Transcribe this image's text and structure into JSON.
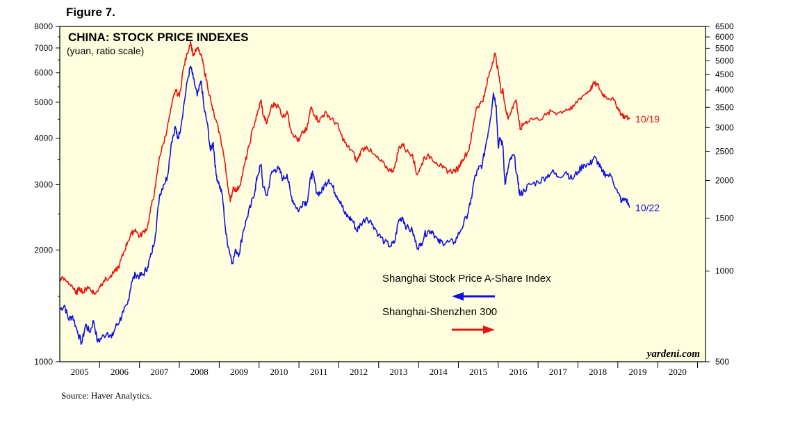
{
  "figure_label": "Figure 7.",
  "source": "Source: Haver Analytics.",
  "colors": {
    "background": "#FFFFE0",
    "red": "#E8140F",
    "blue": "#1010E0"
  },
  "chart_data": {
    "type": "line",
    "title": "CHINA: STOCK PRICE INDEXES",
    "subtitle": "(yuan, ratio scale)",
    "watermark": "yardeni.com",
    "x_range": [
      2004.5,
      2020.7
    ],
    "x_ticks": [
      "2005",
      "2006",
      "2007",
      "2008",
      "2009",
      "2010",
      "2011",
      "2012",
      "2013",
      "2014",
      "2015",
      "2016",
      "2017",
      "2018",
      "2019",
      "2020"
    ],
    "y_left": {
      "scale": "log",
      "range": [
        1000,
        8000
      ],
      "ticks": [
        1000,
        2000,
        3000,
        4000,
        5000,
        6000,
        7000,
        8000
      ]
    },
    "y_right": {
      "scale": "log",
      "range": [
        500,
        6500
      ],
      "ticks": [
        500,
        1000,
        1500,
        2000,
        2500,
        3000,
        3500,
        4000,
        4500,
        5000,
        5500,
        6000,
        6500
      ]
    },
    "series": [
      {
        "name": "Shanghai Stock Price A-Share Index",
        "axis": "left",
        "color": "#1010E0",
        "arrow": "left",
        "end_label": "10/22",
        "points": [
          [
            2004.5,
            1380
          ],
          [
            2004.62,
            1420
          ],
          [
            2004.72,
            1300
          ],
          [
            2004.82,
            1330
          ],
          [
            2004.95,
            1200
          ],
          [
            2005.05,
            1120
          ],
          [
            2005.15,
            1260
          ],
          [
            2005.25,
            1200
          ],
          [
            2005.35,
            1290
          ],
          [
            2005.45,
            1130
          ],
          [
            2005.55,
            1160
          ],
          [
            2005.7,
            1200
          ],
          [
            2005.8,
            1160
          ],
          [
            2005.9,
            1240
          ],
          [
            2006.0,
            1290
          ],
          [
            2006.1,
            1360
          ],
          [
            2006.2,
            1430
          ],
          [
            2006.3,
            1640
          ],
          [
            2006.4,
            1720
          ],
          [
            2006.5,
            1700
          ],
          [
            2006.6,
            1720
          ],
          [
            2006.7,
            1800
          ],
          [
            2006.8,
            1950
          ],
          [
            2006.9,
            2200
          ],
          [
            2007.0,
            2800
          ],
          [
            2007.1,
            3000
          ],
          [
            2007.2,
            3150
          ],
          [
            2007.3,
            3900
          ],
          [
            2007.4,
            4300
          ],
          [
            2007.45,
            4000
          ],
          [
            2007.5,
            4100
          ],
          [
            2007.6,
            4800
          ],
          [
            2007.7,
            5700
          ],
          [
            2007.78,
            6250
          ],
          [
            2007.85,
            5800
          ],
          [
            2007.95,
            5200
          ],
          [
            2008.05,
            5700
          ],
          [
            2008.12,
            4800
          ],
          [
            2008.2,
            4400
          ],
          [
            2008.28,
            3700
          ],
          [
            2008.35,
            3900
          ],
          [
            2008.42,
            3200
          ],
          [
            2008.5,
            3000
          ],
          [
            2008.58,
            2800
          ],
          [
            2008.67,
            2200
          ],
          [
            2008.75,
            2000
          ],
          [
            2008.83,
            1850
          ],
          [
            2008.92,
            2000
          ],
          [
            2009.0,
            1950
          ],
          [
            2009.1,
            2250
          ],
          [
            2009.2,
            2450
          ],
          [
            2009.3,
            2650
          ],
          [
            2009.4,
            2900
          ],
          [
            2009.45,
            3150
          ],
          [
            2009.55,
            3400
          ],
          [
            2009.6,
            2950
          ],
          [
            2009.7,
            2800
          ],
          [
            2009.8,
            3200
          ],
          [
            2009.9,
            3300
          ],
          [
            2010.0,
            3300
          ],
          [
            2010.1,
            3100
          ],
          [
            2010.2,
            3200
          ],
          [
            2010.3,
            2800
          ],
          [
            2010.4,
            2650
          ],
          [
            2010.5,
            2550
          ],
          [
            2010.6,
            2700
          ],
          [
            2010.7,
            2680
          ],
          [
            2010.8,
            3150
          ],
          [
            2010.85,
            3200
          ],
          [
            2010.95,
            2850
          ],
          [
            2011.05,
            2850
          ],
          [
            2011.15,
            3000
          ],
          [
            2011.25,
            3100
          ],
          [
            2011.35,
            2950
          ],
          [
            2011.45,
            2800
          ],
          [
            2011.55,
            2700
          ],
          [
            2011.65,
            2500
          ],
          [
            2011.75,
            2450
          ],
          [
            2011.85,
            2400
          ],
          [
            2011.95,
            2250
          ],
          [
            2012.05,
            2350
          ],
          [
            2012.2,
            2450
          ],
          [
            2012.35,
            2350
          ],
          [
            2012.5,
            2200
          ],
          [
            2012.65,
            2100
          ],
          [
            2012.8,
            2050
          ],
          [
            2012.9,
            2100
          ],
          [
            2013.0,
            2400
          ],
          [
            2013.1,
            2450
          ],
          [
            2013.2,
            2300
          ],
          [
            2013.35,
            2250
          ],
          [
            2013.45,
            2050
          ],
          [
            2013.55,
            2050
          ],
          [
            2013.65,
            2200
          ],
          [
            2013.75,
            2250
          ],
          [
            2013.85,
            2250
          ],
          [
            2014.0,
            2100
          ],
          [
            2014.1,
            2100
          ],
          [
            2014.25,
            2100
          ],
          [
            2014.4,
            2100
          ],
          [
            2014.55,
            2250
          ],
          [
            2014.7,
            2450
          ],
          [
            2014.8,
            2650
          ],
          [
            2014.9,
            3100
          ],
          [
            2015.0,
            3300
          ],
          [
            2015.1,
            3400
          ],
          [
            2015.2,
            3900
          ],
          [
            2015.3,
            4500
          ],
          [
            2015.38,
            5300
          ],
          [
            2015.45,
            4900
          ],
          [
            2015.5,
            3800
          ],
          [
            2015.55,
            4000
          ],
          [
            2015.62,
            3800
          ],
          [
            2015.67,
            3000
          ],
          [
            2015.72,
            3200
          ],
          [
            2015.8,
            3500
          ],
          [
            2015.9,
            3600
          ],
          [
            2016.0,
            3000
          ],
          [
            2016.05,
            2800
          ],
          [
            2016.15,
            2900
          ],
          [
            2016.3,
            3000
          ],
          [
            2016.5,
            3050
          ],
          [
            2016.7,
            3150
          ],
          [
            2016.85,
            3250
          ],
          [
            2017.0,
            3150
          ],
          [
            2017.2,
            3250
          ],
          [
            2017.35,
            3100
          ],
          [
            2017.5,
            3250
          ],
          [
            2017.65,
            3400
          ],
          [
            2017.8,
            3400
          ],
          [
            2017.9,
            3550
          ],
          [
            2018.0,
            3450
          ],
          [
            2018.1,
            3250
          ],
          [
            2018.2,
            3200
          ],
          [
            2018.35,
            3150
          ],
          [
            2018.5,
            2850
          ],
          [
            2018.6,
            2700
          ],
          [
            2018.7,
            2750
          ],
          [
            2018.8,
            2600
          ]
        ]
      },
      {
        "name": "Shanghai-Shenzhen 300",
        "axis": "right",
        "color": "#E8140F",
        "arrow": "right",
        "end_label": "10/19",
        "points": [
          [
            2004.5,
            950
          ],
          [
            2004.65,
            930
          ],
          [
            2004.8,
            900
          ],
          [
            2004.9,
            840
          ],
          [
            2005.0,
            880
          ],
          [
            2005.1,
            850
          ],
          [
            2005.2,
            890
          ],
          [
            2005.3,
            860
          ],
          [
            2005.4,
            840
          ],
          [
            2005.5,
            890
          ],
          [
            2005.6,
            930
          ],
          [
            2005.75,
            950
          ],
          [
            2005.9,
            1000
          ],
          [
            2006.0,
            1050
          ],
          [
            2006.1,
            1150
          ],
          [
            2006.2,
            1250
          ],
          [
            2006.3,
            1330
          ],
          [
            2006.4,
            1380
          ],
          [
            2006.5,
            1300
          ],
          [
            2006.6,
            1350
          ],
          [
            2006.7,
            1400
          ],
          [
            2006.8,
            1650
          ],
          [
            2006.9,
            1900
          ],
          [
            2007.0,
            2400
          ],
          [
            2007.1,
            2650
          ],
          [
            2007.2,
            3000
          ],
          [
            2007.3,
            3500
          ],
          [
            2007.4,
            4000
          ],
          [
            2007.5,
            3800
          ],
          [
            2007.6,
            4700
          ],
          [
            2007.7,
            5300
          ],
          [
            2007.78,
            5800
          ],
          [
            2007.85,
            5200
          ],
          [
            2007.95,
            5500
          ],
          [
            2008.05,
            5200
          ],
          [
            2008.12,
            4700
          ],
          [
            2008.2,
            4200
          ],
          [
            2008.3,
            3600
          ],
          [
            2008.4,
            3200
          ],
          [
            2008.5,
            2900
          ],
          [
            2008.6,
            2500
          ],
          [
            2008.7,
            2000
          ],
          [
            2008.78,
            1700
          ],
          [
            2008.85,
            1900
          ],
          [
            2008.95,
            1850
          ],
          [
            2009.05,
            2000
          ],
          [
            2009.15,
            2300
          ],
          [
            2009.25,
            2600
          ],
          [
            2009.35,
            3000
          ],
          [
            2009.45,
            3300
          ],
          [
            2009.55,
            3700
          ],
          [
            2009.6,
            3300
          ],
          [
            2009.7,
            3100
          ],
          [
            2009.8,
            3500
          ],
          [
            2009.9,
            3600
          ],
          [
            2010.0,
            3500
          ],
          [
            2010.1,
            3250
          ],
          [
            2010.2,
            3400
          ],
          [
            2010.3,
            2950
          ],
          [
            2010.4,
            2800
          ],
          [
            2010.5,
            2700
          ],
          [
            2010.6,
            2900
          ],
          [
            2010.7,
            2950
          ],
          [
            2010.8,
            3500
          ],
          [
            2010.9,
            3300
          ],
          [
            2011.0,
            3150
          ],
          [
            2011.1,
            3300
          ],
          [
            2011.2,
            3350
          ],
          [
            2011.3,
            3200
          ],
          [
            2011.45,
            3100
          ],
          [
            2011.55,
            2850
          ],
          [
            2011.7,
            2600
          ],
          [
            2011.85,
            2500
          ],
          [
            2011.95,
            2300
          ],
          [
            2012.05,
            2500
          ],
          [
            2012.2,
            2600
          ],
          [
            2012.35,
            2450
          ],
          [
            2012.5,
            2350
          ],
          [
            2012.65,
            2250
          ],
          [
            2012.8,
            2150
          ],
          [
            2012.9,
            2200
          ],
          [
            2013.0,
            2550
          ],
          [
            2013.1,
            2650
          ],
          [
            2013.2,
            2500
          ],
          [
            2013.35,
            2450
          ],
          [
            2013.45,
            2100
          ],
          [
            2013.55,
            2200
          ],
          [
            2013.65,
            2400
          ],
          [
            2013.8,
            2400
          ],
          [
            2013.95,
            2300
          ],
          [
            2014.1,
            2200
          ],
          [
            2014.25,
            2150
          ],
          [
            2014.4,
            2150
          ],
          [
            2014.5,
            2200
          ],
          [
            2014.6,
            2350
          ],
          [
            2014.75,
            2500
          ],
          [
            2014.85,
            2900
          ],
          [
            2014.95,
            3500
          ],
          [
            2015.05,
            3600
          ],
          [
            2015.15,
            3800
          ],
          [
            2015.25,
            4400
          ],
          [
            2015.35,
            4900
          ],
          [
            2015.42,
            5300
          ],
          [
            2015.5,
            4600
          ],
          [
            2015.58,
            3900
          ],
          [
            2015.62,
            4000
          ],
          [
            2015.68,
            3500
          ],
          [
            2015.75,
            3200
          ],
          [
            2015.85,
            3500
          ],
          [
            2015.95,
            3700
          ],
          [
            2016.0,
            3300
          ],
          [
            2016.05,
            2950
          ],
          [
            2016.15,
            3100
          ],
          [
            2016.3,
            3200
          ],
          [
            2016.5,
            3200
          ],
          [
            2016.7,
            3300
          ],
          [
            2016.85,
            3400
          ],
          [
            2017.0,
            3350
          ],
          [
            2017.2,
            3450
          ],
          [
            2017.35,
            3450
          ],
          [
            2017.5,
            3700
          ],
          [
            2017.65,
            3850
          ],
          [
            2017.8,
            4000
          ],
          [
            2017.9,
            4200
          ],
          [
            2018.0,
            4150
          ],
          [
            2018.1,
            3900
          ],
          [
            2018.2,
            3800
          ],
          [
            2018.35,
            3750
          ],
          [
            2018.5,
            3500
          ],
          [
            2018.6,
            3300
          ],
          [
            2018.7,
            3250
          ],
          [
            2018.8,
            3200
          ]
        ]
      }
    ]
  }
}
